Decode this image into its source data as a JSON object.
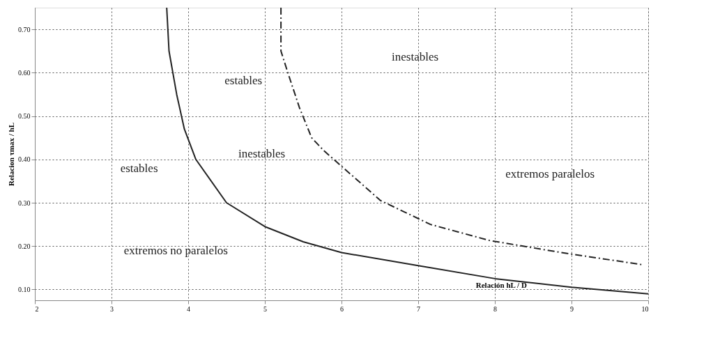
{
  "chart_data": {
    "type": "line",
    "xlabel": "Relación hL / D",
    "ylabel": "Relacion τmax / hL",
    "xlim": [
      2,
      10
    ],
    "ylim": [
      0.075,
      0.75
    ],
    "xticks": [
      2,
      3,
      4,
      5,
      6,
      7,
      8,
      9,
      10
    ],
    "yticks": [
      {
        "value": 0.1,
        "label": "0.10"
      },
      {
        "value": 0.2,
        "label": "0.20"
      },
      {
        "value": 0.3,
        "label": "0.30"
      },
      {
        "value": 0.4,
        "label": "0.40"
      },
      {
        "value": 0.5,
        "label": "0.50"
      },
      {
        "value": 0.6,
        "label": "0.60"
      },
      {
        "value": 0.7,
        "label": "0.70"
      }
    ],
    "grid": true,
    "marker": "none",
    "series": [
      {
        "color": "#222222",
        "line_style": "solid",
        "x": [
          3.72,
          3.75,
          3.85,
          3.95,
          4.1,
          4.5,
          5,
          5.5,
          6,
          7,
          8,
          9,
          10
        ],
        "values": [
          0.75,
          0.65,
          0.55,
          0.47,
          0.4,
          0.3,
          0.245,
          0.21,
          0.185,
          0.155,
          0.125,
          0.105,
          0.09
        ]
      },
      {
        "color": "#222222",
        "line_style": "dashed",
        "x": [
          5.21,
          5.21,
          5.3,
          5.45,
          5.61,
          5.77,
          6.51,
          7.16,
          7.93,
          8.87,
          9.93
        ],
        "values": [
          0.75,
          0.65,
          0.6,
          0.52,
          0.45,
          0.42,
          0.305,
          0.25,
          0.213,
          0.185,
          0.157
        ]
      }
    ],
    "annotations": [
      "estables",
      "inestables",
      "estables",
      "inestables",
      "extremos paralelos",
      "extremos no paralelos"
    ]
  }
}
